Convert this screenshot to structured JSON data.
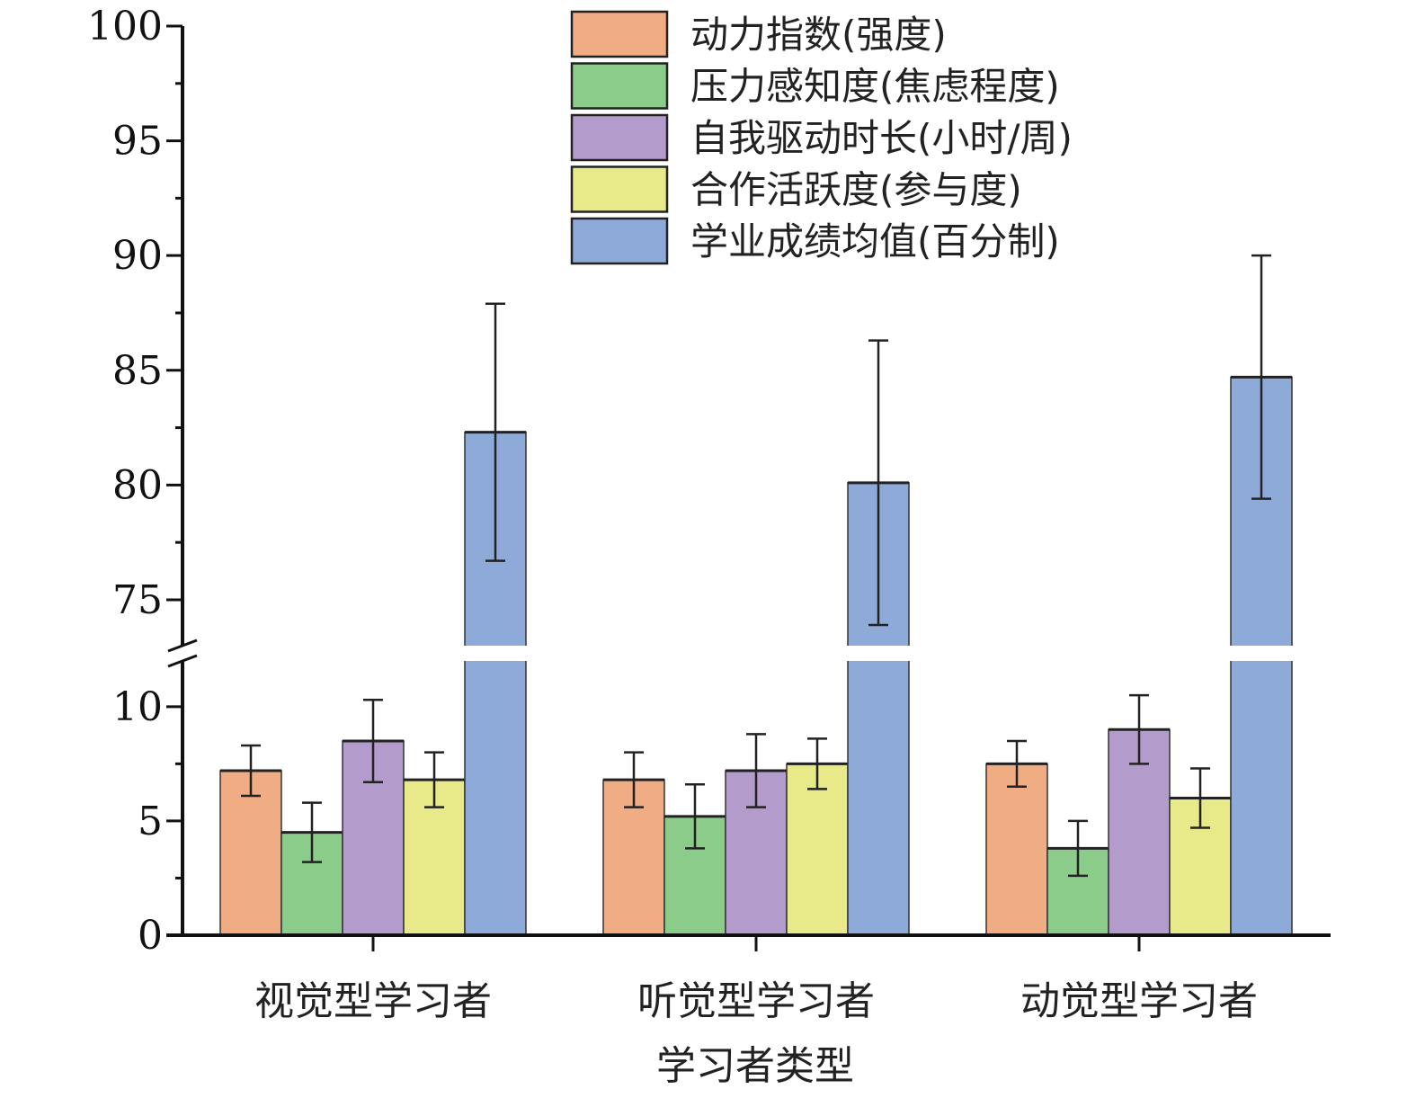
{
  "chart_data": {
    "type": "bar",
    "title": "",
    "xlabel": "学习者类型",
    "ylabel": "",
    "categories": [
      "视觉型学习者",
      "听觉型学习者",
      "动觉型学习者"
    ],
    "axis_break": {
      "lower": [
        0,
        12
      ],
      "upper": [
        73,
        100
      ]
    },
    "yticks_lower": [
      0,
      5,
      10
    ],
    "yticks_upper": [
      75,
      80,
      85,
      90,
      95,
      100
    ],
    "legend_position": "top-right",
    "grid": false,
    "series": [
      {
        "name": "动力指数(强度)",
        "color": "#f0ac82",
        "values": [
          7.2,
          6.8,
          7.5
        ],
        "errors": [
          1.1,
          1.2,
          1.0
        ]
      },
      {
        "name": "压力感知度(焦虑程度)",
        "color": "#8ccc8a",
        "values": [
          4.5,
          5.2,
          3.8
        ],
        "errors": [
          1.3,
          1.4,
          1.2
        ]
      },
      {
        "name": "自我驱动时长(小时/周)",
        "color": "#b39ccc",
        "values": [
          8.5,
          7.2,
          9.0
        ],
        "errors": [
          1.8,
          1.6,
          1.5
        ]
      },
      {
        "name": "合作活跃度(参与度)",
        "color": "#e8ea8a",
        "values": [
          6.8,
          7.5,
          6.0
        ],
        "errors": [
          1.2,
          1.1,
          1.3
        ]
      },
      {
        "name": "学业成绩均值(百分制)",
        "color": "#8eaad8",
        "values": [
          82.3,
          80.1,
          84.7
        ],
        "errors": [
          5.6,
          6.2,
          5.3
        ]
      }
    ]
  }
}
